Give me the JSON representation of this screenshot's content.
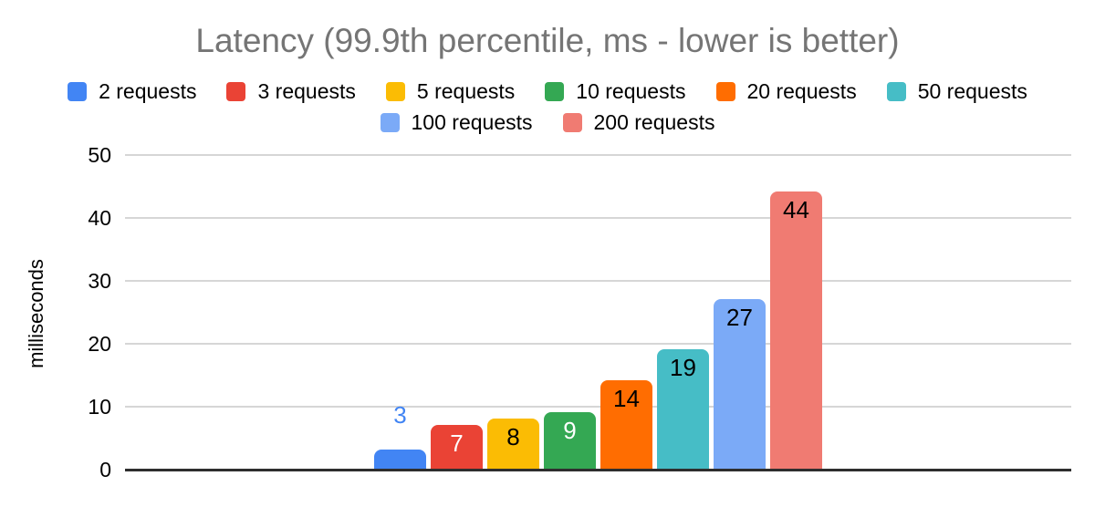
{
  "title": "Latency (99.9th percentile, ms - lower is better)",
  "chart_data": {
    "type": "bar",
    "title": "Latency (99.9th percentile, ms - lower is better)",
    "xlabel": "",
    "ylabel": "milliseconds",
    "ylim": [
      0,
      50
    ],
    "yticks": [
      0,
      10,
      20,
      30,
      40,
      50
    ],
    "grid": true,
    "legend_position": "top",
    "series": [
      {
        "name": "2 requests",
        "value": 3,
        "color": "#4285F4",
        "label": "3",
        "label_color": "#4285F4",
        "label_position": "above"
      },
      {
        "name": "3 requests",
        "value": 7,
        "color": "#EA4335",
        "label": "7",
        "label_color": "#FFFFFF",
        "label_position": "inside"
      },
      {
        "name": "5 requests",
        "value": 8,
        "color": "#FBBC04",
        "label": "8",
        "label_color": "#000000",
        "label_position": "inside"
      },
      {
        "name": "10 requests",
        "value": 9,
        "color": "#34A853",
        "label": "9",
        "label_color": "#FFFFFF",
        "label_position": "inside"
      },
      {
        "name": "20 requests",
        "value": 14,
        "color": "#FF6D01",
        "label": "14",
        "label_color": "#000000",
        "label_position": "inside"
      },
      {
        "name": "50 requests",
        "value": 19,
        "color": "#46BDC6",
        "label": "19",
        "label_color": "#000000",
        "label_position": "inside"
      },
      {
        "name": "100 requests",
        "value": 27,
        "color": "#7BAAF7",
        "label": "27",
        "label_color": "#000000",
        "label_position": "inside"
      },
      {
        "name": "200 requests",
        "value": 44,
        "color": "#F07B72",
        "label": "44",
        "label_color": "#000000",
        "label_position": "inside"
      }
    ],
    "legend_rows": [
      [
        0,
        1,
        2,
        3,
        4,
        5
      ],
      [
        6,
        7
      ]
    ]
  },
  "colors": {
    "title_text": "#757575",
    "axis_line": "#2E2E2E",
    "gridline": "#D6D6D6",
    "tick_text": "#000000",
    "background": "#FFFFFF"
  }
}
